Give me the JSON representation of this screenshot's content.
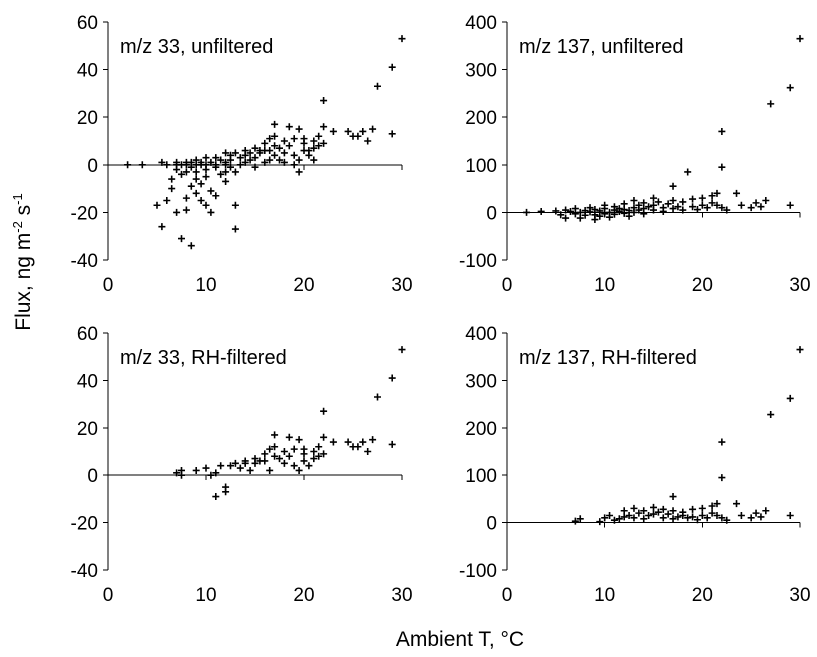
{
  "chart_data": [
    {
      "type": "scatter",
      "title": "m/z 33, unfiltered",
      "xlim": [
        0,
        30
      ],
      "ylim": [
        -40,
        60
      ],
      "xticks": [
        0,
        10,
        20,
        30
      ],
      "yticks": [
        -40,
        -20,
        0,
        20,
        40,
        60
      ],
      "marker": "plus",
      "points": [
        [
          2,
          0
        ],
        [
          3.5,
          0
        ],
        [
          5,
          -17
        ],
        [
          5.5,
          -26
        ],
        [
          5.5,
          1
        ],
        [
          6,
          -15
        ],
        [
          6,
          0
        ],
        [
          6.5,
          -6
        ],
        [
          6.5,
          -10
        ],
        [
          7,
          0
        ],
        [
          7,
          -2
        ],
        [
          7,
          -20
        ],
        [
          7,
          1
        ],
        [
          7.5,
          -4
        ],
        [
          7.5,
          0
        ],
        [
          7.5,
          -31
        ],
        [
          8,
          -14
        ],
        [
          8,
          0
        ],
        [
          8,
          1
        ],
        [
          8,
          -3
        ],
        [
          8,
          -19
        ],
        [
          8.5,
          -1
        ],
        [
          8.5,
          1
        ],
        [
          8.5,
          -9
        ],
        [
          8.5,
          -34
        ],
        [
          9,
          0
        ],
        [
          9,
          -6
        ],
        [
          9,
          -12
        ],
        [
          9,
          2
        ],
        [
          9,
          -3
        ],
        [
          9.5,
          -15
        ],
        [
          9.5,
          0
        ],
        [
          9.5,
          1
        ],
        [
          9.5,
          -8
        ],
        [
          10,
          -2
        ],
        [
          10,
          -17
        ],
        [
          10,
          0
        ],
        [
          10,
          -5
        ],
        [
          10,
          3
        ],
        [
          10.5,
          -11
        ],
        [
          10.5,
          1
        ],
        [
          10.5,
          -20
        ],
        [
          11,
          -1
        ],
        [
          11,
          0
        ],
        [
          11,
          -13
        ],
        [
          11,
          3
        ],
        [
          11.5,
          -4
        ],
        [
          11.5,
          2
        ],
        [
          12,
          0
        ],
        [
          12,
          -3
        ],
        [
          12,
          1
        ],
        [
          12,
          -7
        ],
        [
          12,
          5
        ],
        [
          12.5,
          4
        ],
        [
          12.5,
          -1
        ],
        [
          12.5,
          2
        ],
        [
          13,
          -27
        ],
        [
          13,
          -17
        ],
        [
          13,
          5
        ],
        [
          13,
          -3
        ],
        [
          13.5,
          3
        ],
        [
          13.5,
          0
        ],
        [
          14,
          4
        ],
        [
          14,
          1
        ],
        [
          14,
          6
        ],
        [
          14.5,
          2
        ],
        [
          14.5,
          5
        ],
        [
          15,
          3
        ],
        [
          15,
          7
        ],
        [
          15,
          -1
        ],
        [
          15.5,
          5
        ],
        [
          15.5,
          6
        ],
        [
          16,
          6
        ],
        [
          16,
          9
        ],
        [
          16,
          1
        ],
        [
          16.5,
          2
        ],
        [
          16.5,
          11
        ],
        [
          16.5,
          6
        ],
        [
          17,
          8
        ],
        [
          17,
          4
        ],
        [
          17,
          17
        ],
        [
          17,
          12
        ],
        [
          17.5,
          7
        ],
        [
          17.5,
          2
        ],
        [
          18,
          1
        ],
        [
          18,
          10
        ],
        [
          18,
          5
        ],
        [
          18.5,
          8
        ],
        [
          18.5,
          16
        ],
        [
          19,
          0
        ],
        [
          19,
          11
        ],
        [
          19,
          4
        ],
        [
          19.5,
          -3
        ],
        [
          19.5,
          2
        ],
        [
          19.5,
          15
        ],
        [
          20,
          6
        ],
        [
          20,
          9
        ],
        [
          20,
          11
        ],
        [
          20.5,
          4
        ],
        [
          20.5,
          6
        ],
        [
          21,
          2
        ],
        [
          21,
          7
        ],
        [
          21,
          10
        ],
        [
          21.5,
          8
        ],
        [
          21.5,
          12
        ],
        [
          22,
          27
        ],
        [
          22,
          9
        ],
        [
          22,
          16
        ],
        [
          23,
          14
        ],
        [
          24.5,
          14
        ],
        [
          25,
          12
        ],
        [
          25.5,
          12
        ],
        [
          26,
          14
        ],
        [
          26.5,
          10
        ],
        [
          27,
          15
        ],
        [
          27.5,
          33
        ],
        [
          29,
          13
        ],
        [
          29,
          41
        ],
        [
          30,
          53
        ]
      ]
    },
    {
      "type": "scatter",
      "title": "m/z 137, unfiltered",
      "xlim": [
        0,
        30
      ],
      "ylim": [
        -100,
        400
      ],
      "xticks": [
        0,
        10,
        20,
        30
      ],
      "yticks": [
        -100,
        0,
        100,
        200,
        300,
        400
      ],
      "marker": "plus",
      "points": [
        [
          2,
          0
        ],
        [
          3.5,
          2
        ],
        [
          5,
          3
        ],
        [
          5.5,
          -5
        ],
        [
          6,
          5
        ],
        [
          6,
          -12
        ],
        [
          6.5,
          2
        ],
        [
          7,
          -3
        ],
        [
          7,
          8
        ],
        [
          7.5,
          0
        ],
        [
          7.5,
          -12
        ],
        [
          8,
          4
        ],
        [
          8,
          -6
        ],
        [
          8.5,
          10
        ],
        [
          8.5,
          1
        ],
        [
          9,
          -5
        ],
        [
          9,
          6
        ],
        [
          9,
          -15
        ],
        [
          9.5,
          3
        ],
        [
          9.5,
          -8
        ],
        [
          10,
          8
        ],
        [
          10,
          -3
        ],
        [
          10,
          15
        ],
        [
          10.5,
          0
        ],
        [
          10.5,
          -10
        ],
        [
          11,
          5
        ],
        [
          11,
          12
        ],
        [
          11,
          -4
        ],
        [
          11.5,
          2
        ],
        [
          11.5,
          8
        ],
        [
          12,
          -2
        ],
        [
          12,
          6
        ],
        [
          12,
          18
        ],
        [
          12.5,
          4
        ],
        [
          12.5,
          -8
        ],
        [
          13,
          25
        ],
        [
          13,
          10
        ],
        [
          13,
          0
        ],
        [
          13.5,
          5
        ],
        [
          13.5,
          15
        ],
        [
          14,
          8
        ],
        [
          14,
          20
        ],
        [
          14,
          -3
        ],
        [
          14.5,
          12
        ],
        [
          15,
          5
        ],
        [
          15,
          30
        ],
        [
          15,
          15
        ],
        [
          15.5,
          22
        ],
        [
          16,
          10
        ],
        [
          16,
          2
        ],
        [
          16.5,
          18
        ],
        [
          17,
          25
        ],
        [
          17,
          55
        ],
        [
          17,
          8
        ],
        [
          17.5,
          12
        ],
        [
          18,
          5
        ],
        [
          18,
          22
        ],
        [
          18.5,
          85
        ],
        [
          19,
          12
        ],
        [
          19,
          28
        ],
        [
          19.5,
          6
        ],
        [
          20,
          15
        ],
        [
          20,
          30
        ],
        [
          20.5,
          10
        ],
        [
          21,
          20
        ],
        [
          21,
          35
        ],
        [
          21.5,
          40
        ],
        [
          21.5,
          15
        ],
        [
          22,
          170
        ],
        [
          22,
          95
        ],
        [
          22,
          10
        ],
        [
          22.5,
          5
        ],
        [
          23.5,
          40
        ],
        [
          24,
          15
        ],
        [
          25,
          10
        ],
        [
          25.5,
          20
        ],
        [
          26,
          12
        ],
        [
          26.5,
          25
        ],
        [
          27,
          228
        ],
        [
          29,
          262
        ],
        [
          29,
          15
        ],
        [
          30,
          365
        ]
      ]
    },
    {
      "type": "scatter",
      "title": "m/z 33, RH-filtered",
      "xlim": [
        0,
        30
      ],
      "ylim": [
        -40,
        60
      ],
      "xticks": [
        0,
        10,
        20,
        30
      ],
      "yticks": [
        -40,
        -20,
        0,
        20,
        40,
        60
      ],
      "marker": "plus",
      "points": [
        [
          7,
          1
        ],
        [
          7.5,
          0
        ],
        [
          7.5,
          2
        ],
        [
          9,
          2
        ],
        [
          10,
          3
        ],
        [
          10.5,
          0
        ],
        [
          11,
          -9
        ],
        [
          11,
          1
        ],
        [
          11.5,
          4
        ],
        [
          12,
          -5
        ],
        [
          12,
          -7
        ],
        [
          12.5,
          4
        ],
        [
          13,
          5
        ],
        [
          13.5,
          3
        ],
        [
          14,
          5
        ],
        [
          14,
          6
        ],
        [
          14.5,
          2
        ],
        [
          15,
          7
        ],
        [
          15,
          5
        ],
        [
          15.5,
          6
        ],
        [
          16,
          9
        ],
        [
          16,
          6
        ],
        [
          16.5,
          2
        ],
        [
          16.5,
          11
        ],
        [
          17,
          8
        ],
        [
          17,
          17
        ],
        [
          17,
          12
        ],
        [
          17.5,
          7
        ],
        [
          18,
          10
        ],
        [
          18,
          5
        ],
        [
          18.5,
          8
        ],
        [
          18.5,
          16
        ],
        [
          19,
          11
        ],
        [
          19,
          4
        ],
        [
          19.5,
          2
        ],
        [
          19.5,
          15
        ],
        [
          20,
          6
        ],
        [
          20,
          9
        ],
        [
          20,
          11
        ],
        [
          20.5,
          4
        ],
        [
          21,
          7
        ],
        [
          21,
          10
        ],
        [
          21.5,
          8
        ],
        [
          21.5,
          12
        ],
        [
          22,
          27
        ],
        [
          22,
          9
        ],
        [
          22,
          16
        ],
        [
          23,
          14
        ],
        [
          24.5,
          14
        ],
        [
          25,
          12
        ],
        [
          25.5,
          12
        ],
        [
          26,
          14
        ],
        [
          26.5,
          10
        ],
        [
          27,
          15
        ],
        [
          27.5,
          33
        ],
        [
          29,
          13
        ],
        [
          29,
          41
        ],
        [
          30,
          53
        ]
      ]
    },
    {
      "type": "scatter",
      "title": "m/z 137, RH-filtered",
      "xlim": [
        0,
        30
      ],
      "ylim": [
        -100,
        400
      ],
      "xticks": [
        0,
        10,
        20,
        30
      ],
      "yticks": [
        -100,
        0,
        100,
        200,
        300,
        400
      ],
      "marker": "plus",
      "points": [
        [
          7,
          3
        ],
        [
          7.5,
          8
        ],
        [
          9.5,
          2
        ],
        [
          10,
          10
        ],
        [
          10.5,
          15
        ],
        [
          11,
          5
        ],
        [
          11.5,
          8
        ],
        [
          12,
          12
        ],
        [
          12,
          25
        ],
        [
          12.5,
          15
        ],
        [
          13,
          10
        ],
        [
          13,
          30
        ],
        [
          13.5,
          20
        ],
        [
          14,
          8
        ],
        [
          14,
          25
        ],
        [
          14.5,
          15
        ],
        [
          15,
          18
        ],
        [
          15,
          32
        ],
        [
          15.5,
          22
        ],
        [
          16,
          10
        ],
        [
          16,
          28
        ],
        [
          16.5,
          18
        ],
        [
          17,
          25
        ],
        [
          17,
          55
        ],
        [
          17,
          8
        ],
        [
          17.5,
          12
        ],
        [
          18,
          15
        ],
        [
          18,
          22
        ],
        [
          18.5,
          10
        ],
        [
          19,
          12
        ],
        [
          19,
          28
        ],
        [
          19.5,
          6
        ],
        [
          20,
          15
        ],
        [
          20,
          30
        ],
        [
          20.5,
          10
        ],
        [
          21,
          20
        ],
        [
          21,
          35
        ],
        [
          21.5,
          40
        ],
        [
          21.5,
          15
        ],
        [
          22,
          170
        ],
        [
          22,
          95
        ],
        [
          22,
          10
        ],
        [
          22.5,
          5
        ],
        [
          23.5,
          40
        ],
        [
          24,
          15
        ],
        [
          25,
          10
        ],
        [
          25.5,
          20
        ],
        [
          26,
          12
        ],
        [
          26.5,
          25
        ],
        [
          27,
          228
        ],
        [
          29,
          262
        ],
        [
          29,
          15
        ],
        [
          30,
          365
        ]
      ]
    }
  ],
  "shared": {
    "ylabel": "Flux, ng m",
    "ylabel_sup1": "-2",
    "ylabel_mid": " s",
    "ylabel_sup2": "-1",
    "xlabel": "Ambient T, °C"
  }
}
